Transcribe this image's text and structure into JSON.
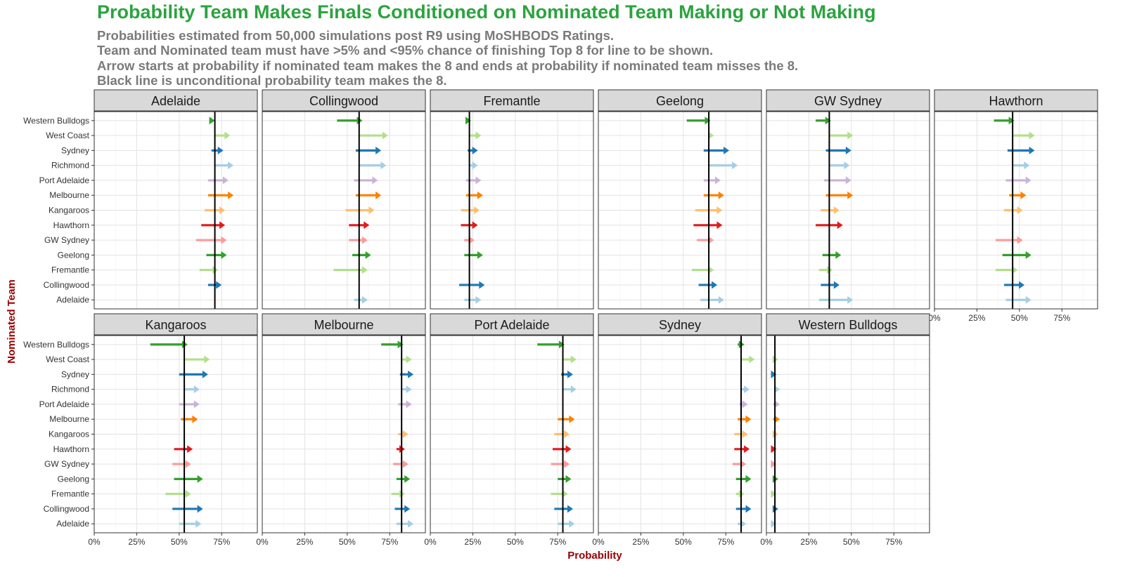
{
  "title": "Probability Team Makes Finals Conditioned on Nominated Team Making or Not Making",
  "subtitle_lines": [
    "Probabilities estimated from 50,000 simulations post R9 using MoSHBODS Ratings.",
    "Team and Nominated team must have >5% and <95% chance of finishing Top 8 for line to be shown.",
    "Arrow starts at probability if nominated team makes the 8 and ends at probability if nominated team misses the 8.",
    "Black line is unconditional probability team makes the 8."
  ],
  "chart_data": {
    "type": "arrow-dot-plot (faceted)",
    "xlabel": "Probability",
    "ylabel": "Nominated Team",
    "xlim": [
      0,
      0.96
    ],
    "x_ticks": [
      0,
      0.25,
      0.5,
      0.75
    ],
    "x_tick_labels": [
      "0%",
      "25%",
      "50%",
      "75%"
    ],
    "grid": true,
    "legend": "none",
    "y_categories": [
      "Western Bulldogs",
      "West Coast",
      "Sydney",
      "Richmond",
      "Port Adelaide",
      "Melbourne",
      "Kangaroos",
      "Hawthorn",
      "GW Sydney",
      "Geelong",
      "Fremantle",
      "Collingwood",
      "Adelaide"
    ],
    "team_colors": {
      "Western Bulldogs": "#33a02c",
      "West Coast": "#b2df8a",
      "Sydney": "#1f78b4",
      "Richmond": "#a6cee3",
      "Port Adelaide": "#cab2d6",
      "Melbourne": "#ff7f00",
      "Kangaroos": "#fdbf6f",
      "Hawthorn": "#e31a1c",
      "GW Sydney": "#fb9a99",
      "Geelong": "#33a02c",
      "Fremantle": "#b2df8a",
      "Collingwood": "#1f78b4",
      "Adelaide": "#a6cee3"
    },
    "facets": [
      {
        "team": "Adelaide",
        "unconditional": 0.71,
        "arrows": [
          {
            "nominated": "Western Bulldogs",
            "x_start": 0.68,
            "x_end": 0.71
          },
          {
            "nominated": "West Coast",
            "x_start": 0.71,
            "x_end": 0.8
          },
          {
            "nominated": "Sydney",
            "x_start": 0.69,
            "x_end": 0.76
          },
          {
            "nominated": "Richmond",
            "x_start": 0.71,
            "x_end": 0.82
          },
          {
            "nominated": "Port Adelaide",
            "x_start": 0.67,
            "x_end": 0.79
          },
          {
            "nominated": "Melbourne",
            "x_start": 0.67,
            "x_end": 0.82
          },
          {
            "nominated": "Kangaroos",
            "x_start": 0.65,
            "x_end": 0.77
          },
          {
            "nominated": "Hawthorn",
            "x_start": 0.63,
            "x_end": 0.77
          },
          {
            "nominated": "GW Sydney",
            "x_start": 0.6,
            "x_end": 0.78
          },
          {
            "nominated": "Geelong",
            "x_start": 0.66,
            "x_end": 0.78
          },
          {
            "nominated": "Fremantle",
            "x_start": 0.62,
            "x_end": 0.73
          },
          {
            "nominated": "Collingwood",
            "x_start": 0.67,
            "x_end": 0.75
          },
          {
            "nominated": "Adelaide",
            "x_start": null,
            "x_end": null
          }
        ]
      },
      {
        "team": "Collingwood",
        "unconditional": 0.57,
        "arrows": [
          {
            "nominated": "Western Bulldogs",
            "x_start": 0.44,
            "x_end": 0.59
          },
          {
            "nominated": "West Coast",
            "x_start": 0.57,
            "x_end": 0.74
          },
          {
            "nominated": "Sydney",
            "x_start": 0.55,
            "x_end": 0.7
          },
          {
            "nominated": "Richmond",
            "x_start": 0.57,
            "x_end": 0.73
          },
          {
            "nominated": "Port Adelaide",
            "x_start": 0.54,
            "x_end": 0.68
          },
          {
            "nominated": "Melbourne",
            "x_start": 0.55,
            "x_end": 0.7
          },
          {
            "nominated": "Kangaroos",
            "x_start": 0.49,
            "x_end": 0.66
          },
          {
            "nominated": "Hawthorn",
            "x_start": 0.51,
            "x_end": 0.63
          },
          {
            "nominated": "GW Sydney",
            "x_start": 0.51,
            "x_end": 0.62
          },
          {
            "nominated": "Geelong",
            "x_start": 0.53,
            "x_end": 0.64
          },
          {
            "nominated": "Fremantle",
            "x_start": 0.42,
            "x_end": 0.62
          },
          {
            "nominated": "Collingwood",
            "x_start": null,
            "x_end": null
          },
          {
            "nominated": "Adelaide",
            "x_start": 0.54,
            "x_end": 0.62
          }
        ]
      },
      {
        "team": "Fremantle",
        "unconditional": 0.23,
        "arrows": [
          {
            "nominated": "Western Bulldogs",
            "x_start": 0.21,
            "x_end": 0.24
          },
          {
            "nominated": "West Coast",
            "x_start": 0.23,
            "x_end": 0.3
          },
          {
            "nominated": "Sydney",
            "x_start": 0.22,
            "x_end": 0.28
          },
          {
            "nominated": "Richmond",
            "x_start": 0.23,
            "x_end": 0.28
          },
          {
            "nominated": "Port Adelaide",
            "x_start": 0.21,
            "x_end": 0.3
          },
          {
            "nominated": "Melbourne",
            "x_start": 0.21,
            "x_end": 0.31
          },
          {
            "nominated": "Kangaroos",
            "x_start": 0.18,
            "x_end": 0.29
          },
          {
            "nominated": "Hawthorn",
            "x_start": 0.18,
            "x_end": 0.28
          },
          {
            "nominated": "GW Sydney",
            "x_start": 0.2,
            "x_end": 0.26
          },
          {
            "nominated": "Geelong",
            "x_start": 0.2,
            "x_end": 0.31
          },
          {
            "nominated": "Fremantle",
            "x_start": null,
            "x_end": null
          },
          {
            "nominated": "Collingwood",
            "x_start": 0.17,
            "x_end": 0.32
          },
          {
            "nominated": "Adelaide",
            "x_start": 0.2,
            "x_end": 0.3
          }
        ]
      },
      {
        "team": "Geelong",
        "unconditional": 0.65,
        "arrows": [
          {
            "nominated": "Western Bulldogs",
            "x_start": 0.52,
            "x_end": 0.66
          },
          {
            "nominated": "West Coast",
            "x_start": 0.65,
            "x_end": 0.68
          },
          {
            "nominated": "Sydney",
            "x_start": 0.62,
            "x_end": 0.77
          },
          {
            "nominated": "Richmond",
            "x_start": 0.65,
            "x_end": 0.82
          },
          {
            "nominated": "Port Adelaide",
            "x_start": 0.62,
            "x_end": 0.72
          },
          {
            "nominated": "Melbourne",
            "x_start": 0.62,
            "x_end": 0.74
          },
          {
            "nominated": "Kangaroos",
            "x_start": 0.57,
            "x_end": 0.73
          },
          {
            "nominated": "Hawthorn",
            "x_start": 0.56,
            "x_end": 0.73
          },
          {
            "nominated": "GW Sydney",
            "x_start": 0.58,
            "x_end": 0.68
          },
          {
            "nominated": "Geelong",
            "x_start": null,
            "x_end": null
          },
          {
            "nominated": "Fremantle",
            "x_start": 0.55,
            "x_end": 0.68
          },
          {
            "nominated": "Collingwood",
            "x_start": 0.59,
            "x_end": 0.7
          },
          {
            "nominated": "Adelaide",
            "x_start": 0.6,
            "x_end": 0.74
          }
        ]
      },
      {
        "team": "GW Sydney",
        "unconditional": 0.37,
        "arrows": [
          {
            "nominated": "Western Bulldogs",
            "x_start": 0.29,
            "x_end": 0.38
          },
          {
            "nominated": "West Coast",
            "x_start": 0.37,
            "x_end": 0.51
          },
          {
            "nominated": "Sydney",
            "x_start": 0.35,
            "x_end": 0.5
          },
          {
            "nominated": "Richmond",
            "x_start": 0.37,
            "x_end": 0.49
          },
          {
            "nominated": "Port Adelaide",
            "x_start": 0.34,
            "x_end": 0.5
          },
          {
            "nominated": "Melbourne",
            "x_start": 0.35,
            "x_end": 0.51
          },
          {
            "nominated": "Kangaroos",
            "x_start": 0.32,
            "x_end": 0.43
          },
          {
            "nominated": "Hawthorn",
            "x_start": 0.29,
            "x_end": 0.45
          },
          {
            "nominated": "GW Sydney",
            "x_start": null,
            "x_end": null
          },
          {
            "nominated": "Geelong",
            "x_start": 0.33,
            "x_end": 0.44
          },
          {
            "nominated": "Fremantle",
            "x_start": 0.31,
            "x_end": 0.39
          },
          {
            "nominated": "Collingwood",
            "x_start": 0.32,
            "x_end": 0.43
          },
          {
            "nominated": "Adelaide",
            "x_start": 0.31,
            "x_end": 0.51
          }
        ]
      },
      {
        "team": "Hawthorn",
        "unconditional": 0.46,
        "arrows": [
          {
            "nominated": "Western Bulldogs",
            "x_start": 0.35,
            "x_end": 0.47
          },
          {
            "nominated": "West Coast",
            "x_start": 0.46,
            "x_end": 0.59
          },
          {
            "nominated": "Sydney",
            "x_start": 0.43,
            "x_end": 0.59
          },
          {
            "nominated": "Richmond",
            "x_start": 0.46,
            "x_end": 0.56
          },
          {
            "nominated": "Port Adelaide",
            "x_start": 0.42,
            "x_end": 0.57
          },
          {
            "nominated": "Melbourne",
            "x_start": 0.44,
            "x_end": 0.54
          },
          {
            "nominated": "Kangaroos",
            "x_start": 0.41,
            "x_end": 0.52
          },
          {
            "nominated": "Hawthorn",
            "x_start": null,
            "x_end": null
          },
          {
            "nominated": "GW Sydney",
            "x_start": 0.36,
            "x_end": 0.52
          },
          {
            "nominated": "Geelong",
            "x_start": 0.4,
            "x_end": 0.57
          },
          {
            "nominated": "Fremantle",
            "x_start": 0.36,
            "x_end": 0.49
          },
          {
            "nominated": "Collingwood",
            "x_start": 0.41,
            "x_end": 0.53
          },
          {
            "nominated": "Adelaide",
            "x_start": 0.42,
            "x_end": 0.57
          }
        ]
      },
      {
        "team": "Kangaroos",
        "unconditional": 0.53,
        "arrows": [
          {
            "nominated": "Western Bulldogs",
            "x_start": 0.33,
            "x_end": 0.55
          },
          {
            "nominated": "West Coast",
            "x_start": 0.53,
            "x_end": 0.68
          },
          {
            "nominated": "Sydney",
            "x_start": 0.5,
            "x_end": 0.67
          },
          {
            "nominated": "Richmond",
            "x_start": 0.53,
            "x_end": 0.62
          },
          {
            "nominated": "Port Adelaide",
            "x_start": 0.5,
            "x_end": 0.62
          },
          {
            "nominated": "Melbourne",
            "x_start": 0.51,
            "x_end": 0.61
          },
          {
            "nominated": "Kangaroos",
            "x_start": null,
            "x_end": null
          },
          {
            "nominated": "Hawthorn",
            "x_start": 0.47,
            "x_end": 0.58
          },
          {
            "nominated": "GW Sydney",
            "x_start": 0.46,
            "x_end": 0.57
          },
          {
            "nominated": "Geelong",
            "x_start": 0.47,
            "x_end": 0.64
          },
          {
            "nominated": "Fremantle",
            "x_start": 0.42,
            "x_end": 0.57
          },
          {
            "nominated": "Collingwood",
            "x_start": 0.46,
            "x_end": 0.64
          },
          {
            "nominated": "Adelaide",
            "x_start": 0.5,
            "x_end": 0.63
          }
        ]
      },
      {
        "team": "Melbourne",
        "unconditional": 0.82,
        "arrows": [
          {
            "nominated": "Western Bulldogs",
            "x_start": 0.7,
            "x_end": 0.83
          },
          {
            "nominated": "West Coast",
            "x_start": 0.82,
            "x_end": 0.88
          },
          {
            "nominated": "Sydney",
            "x_start": 0.81,
            "x_end": 0.89
          },
          {
            "nominated": "Richmond",
            "x_start": 0.82,
            "x_end": 0.88
          },
          {
            "nominated": "Port Adelaide",
            "x_start": 0.8,
            "x_end": 0.88
          },
          {
            "nominated": "Melbourne",
            "x_start": null,
            "x_end": null
          },
          {
            "nominated": "Kangaroos",
            "x_start": 0.8,
            "x_end": 0.86
          },
          {
            "nominated": "Hawthorn",
            "x_start": 0.79,
            "x_end": 0.84
          },
          {
            "nominated": "GW Sydney",
            "x_start": 0.77,
            "x_end": 0.86
          },
          {
            "nominated": "Geelong",
            "x_start": 0.79,
            "x_end": 0.87
          },
          {
            "nominated": "Fremantle",
            "x_start": 0.76,
            "x_end": 0.84
          },
          {
            "nominated": "Collingwood",
            "x_start": 0.78,
            "x_end": 0.87
          },
          {
            "nominated": "Adelaide",
            "x_start": 0.79,
            "x_end": 0.89
          }
        ]
      },
      {
        "team": "Port Adelaide",
        "unconditional": 0.78,
        "arrows": [
          {
            "nominated": "Western Bulldogs",
            "x_start": 0.63,
            "x_end": 0.79
          },
          {
            "nominated": "West Coast",
            "x_start": 0.78,
            "x_end": 0.86
          },
          {
            "nominated": "Sydney",
            "x_start": 0.77,
            "x_end": 0.84
          },
          {
            "nominated": "Richmond",
            "x_start": 0.78,
            "x_end": 0.86
          },
          {
            "nominated": "Port Adelaide",
            "x_start": null,
            "x_end": null
          },
          {
            "nominated": "Melbourne",
            "x_start": 0.75,
            "x_end": 0.85
          },
          {
            "nominated": "Kangaroos",
            "x_start": 0.73,
            "x_end": 0.82
          },
          {
            "nominated": "Hawthorn",
            "x_start": 0.72,
            "x_end": 0.83
          },
          {
            "nominated": "GW Sydney",
            "x_start": 0.71,
            "x_end": 0.82
          },
          {
            "nominated": "Geelong",
            "x_start": 0.75,
            "x_end": 0.83
          },
          {
            "nominated": "Fremantle",
            "x_start": 0.71,
            "x_end": 0.81
          },
          {
            "nominated": "Collingwood",
            "x_start": 0.73,
            "x_end": 0.84
          },
          {
            "nominated": "Adelaide",
            "x_start": 0.75,
            "x_end": 0.85
          }
        ]
      },
      {
        "team": "Sydney",
        "unconditional": 0.84,
        "arrows": [
          {
            "nominated": "Western Bulldogs",
            "x_start": 0.82,
            "x_end": 0.86
          },
          {
            "nominated": "West Coast",
            "x_start": 0.84,
            "x_end": 0.92
          },
          {
            "nominated": "Sydney",
            "x_start": null,
            "x_end": null
          },
          {
            "nominated": "Richmond",
            "x_start": 0.84,
            "x_end": 0.89
          },
          {
            "nominated": "Port Adelaide",
            "x_start": 0.83,
            "x_end": 0.88
          },
          {
            "nominated": "Melbourne",
            "x_start": 0.82,
            "x_end": 0.9
          },
          {
            "nominated": "Kangaroos",
            "x_start": 0.8,
            "x_end": 0.88
          },
          {
            "nominated": "Hawthorn",
            "x_start": 0.8,
            "x_end": 0.89
          },
          {
            "nominated": "GW Sydney",
            "x_start": 0.79,
            "x_end": 0.87
          },
          {
            "nominated": "Geelong",
            "x_start": 0.81,
            "x_end": 0.9
          },
          {
            "nominated": "Fremantle",
            "x_start": 0.81,
            "x_end": 0.86
          },
          {
            "nominated": "Collingwood",
            "x_start": 0.81,
            "x_end": 0.9
          },
          {
            "nominated": "Adelaide",
            "x_start": 0.82,
            "x_end": 0.87
          }
        ]
      },
      {
        "team": "Western Bulldogs",
        "unconditional": 0.05,
        "arrows": [
          {
            "nominated": "Western Bulldogs",
            "x_start": null,
            "x_end": null
          },
          {
            "nominated": "West Coast",
            "x_start": 0.05,
            "x_end": 0.07
          },
          {
            "nominated": "Sydney",
            "x_start": 0.04,
            "x_end": 0.06
          },
          {
            "nominated": "Richmond",
            "x_start": 0.05,
            "x_end": 0.08
          },
          {
            "nominated": "Port Adelaide",
            "x_start": 0.04,
            "x_end": 0.08
          },
          {
            "nominated": "Melbourne",
            "x_start": 0.04,
            "x_end": 0.08
          },
          {
            "nominated": "Kangaroos",
            "x_start": 0.04,
            "x_end": 0.07
          },
          {
            "nominated": "Hawthorn",
            "x_start": 0.03,
            "x_end": 0.06
          },
          {
            "nominated": "GW Sydney",
            "x_start": 0.03,
            "x_end": 0.06
          },
          {
            "nominated": "Geelong",
            "x_start": 0.04,
            "x_end": 0.07
          },
          {
            "nominated": "Fremantle",
            "x_start": 0.03,
            "x_end": 0.06
          },
          {
            "nominated": "Collingwood",
            "x_start": 0.04,
            "x_end": 0.07
          },
          {
            "nominated": "Adelaide",
            "x_start": 0.04,
            "x_end": 0.06
          }
        ]
      }
    ]
  }
}
